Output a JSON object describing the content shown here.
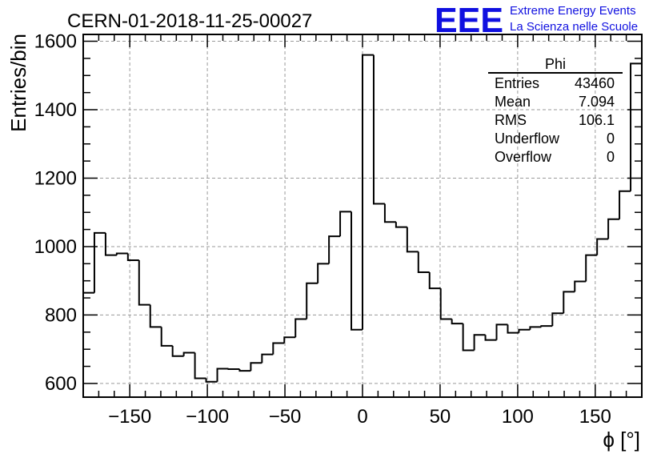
{
  "title": "CERN-01-2018-11-25-00027",
  "logo": {
    "mark": "EEE",
    "line1": "Extreme Energy Events",
    "line2": "La Scienza nelle Scuole",
    "color": "#1010e0"
  },
  "stats_box": {
    "title": "Phi",
    "rows": [
      {
        "label": "Entries",
        "value": "43460"
      },
      {
        "label": "Mean",
        "value": "7.094"
      },
      {
        "label": "RMS",
        "value": "106.1"
      },
      {
        "label": "Underflow",
        "value": "0"
      },
      {
        "label": "Overflow",
        "value": "0"
      }
    ]
  },
  "chart_data": {
    "type": "bar",
    "histogram": true,
    "title": "CERN-01-2018-11-25-00027",
    "xlabel": "ϕ [°]",
    "ylabel": "Entries/bin",
    "xlim": [
      -180,
      180
    ],
    "ylim": [
      560,
      1620
    ],
    "bin_width": 7.2,
    "bin_edges_start": -180,
    "x_ticks": [
      "−150",
      "−100",
      "−50",
      "0",
      "50",
      "100",
      "150"
    ],
    "x_tick_values": [
      -150,
      -100,
      -50,
      0,
      50,
      100,
      150
    ],
    "y_ticks": [
      "600",
      "800",
      "1000",
      "1200",
      "1400",
      "1600"
    ],
    "y_tick_values": [
      600,
      800,
      1000,
      1200,
      1400,
      1600
    ],
    "grid": true,
    "line_color": "#000000",
    "values": [
      865,
      1040,
      975,
      980,
      960,
      830,
      765,
      710,
      680,
      690,
      615,
      605,
      643,
      642,
      637,
      660,
      685,
      718,
      735,
      788,
      893,
      950,
      1030,
      1102,
      757,
      1560,
      1125,
      1072,
      1057,
      985,
      925,
      878,
      788,
      775,
      697,
      742,
      727,
      772,
      748,
      757,
      765,
      768,
      805,
      868,
      898,
      975,
      1022,
      1080,
      1162,
      1535
    ]
  }
}
